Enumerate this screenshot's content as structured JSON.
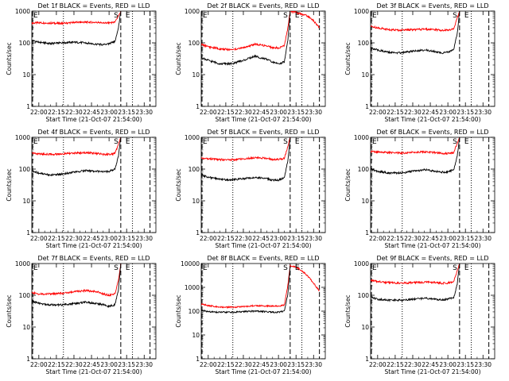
{
  "chart_data": [
    {
      "type": "line",
      "title": "Det 1f BLACK = Events, RED = LLD",
      "xlabel": "Start Time (21-Oct-07 21:54:00)",
      "ylabel": "Counts/sec",
      "x_tick_labels": [
        "22:00",
        "22:15",
        "22:30",
        "22:45",
        "23:00",
        "23:15",
        "23:30"
      ],
      "x_range_min": [
        -6,
        100
      ],
      "y_scale": "log",
      "ylim": [
        1,
        1000
      ],
      "y_tick_labels": [
        "1",
        "10",
        "100",
        "1000"
      ],
      "markers": [
        {
          "label": "E",
          "x": -6,
          "style": "dash"
        },
        {
          "label": "S",
          "x": 70,
          "style": "dash"
        },
        {
          "label": "E",
          "x": 80,
          "style": "dot"
        },
        {
          "label": "",
          "x": 95,
          "style": "dash"
        },
        {
          "label": "",
          "x": 21,
          "style": "dot"
        }
      ],
      "series": [
        {
          "color": "#ff0000",
          "x": [
            -6,
            0,
            10,
            20,
            30,
            40,
            50,
            55,
            60,
            65,
            68,
            70
          ],
          "values": [
            420,
            430,
            420,
            410,
            440,
            450,
            440,
            420,
            430,
            450,
            700,
            1000
          ]
        },
        {
          "color": "#000000",
          "x": [
            -6,
            0,
            10,
            20,
            30,
            40,
            50,
            55,
            60,
            65,
            68,
            70
          ],
          "values": [
            120,
            105,
            95,
            100,
            105,
            100,
            90,
            88,
            95,
            110,
            300,
            1000
          ]
        }
      ]
    },
    {
      "type": "line",
      "title": "Det 2f BLACK = Events, RED = LLD",
      "xlabel": "Start Time (21-Oct-07 21:54:00)",
      "ylabel": "Counts/sec",
      "x_tick_labels": [
        "22:00",
        "22:15",
        "22:30",
        "22:45",
        "23:00",
        "23:15",
        "23:30"
      ],
      "x_range_min": [
        -6,
        100
      ],
      "y_scale": "log",
      "ylim": [
        1,
        1000
      ],
      "y_tick_labels": [
        "1",
        "10",
        "100",
        "1000"
      ],
      "markers": [
        {
          "label": "E",
          "x": -6,
          "style": "dash"
        },
        {
          "label": "S",
          "x": 70,
          "style": "dash"
        },
        {
          "label": "E",
          "x": 80,
          "style": "dot"
        },
        {
          "label": "",
          "x": 95,
          "style": "dash"
        },
        {
          "label": "",
          "x": 21,
          "style": "dot"
        }
      ],
      "series": [
        {
          "color": "#ff0000",
          "x": [
            -6,
            0,
            10,
            20,
            30,
            40,
            50,
            55,
            60,
            65,
            68,
            70,
            75,
            80,
            85,
            90,
            95
          ],
          "values": [
            90,
            75,
            65,
            60,
            70,
            90,
            80,
            70,
            70,
            80,
            300,
            1000,
            900,
            800,
            700,
            500,
            300
          ]
        },
        {
          "color": "#000000",
          "x": [
            -6,
            0,
            10,
            20,
            30,
            40,
            50,
            55,
            60,
            65,
            68,
            70
          ],
          "values": [
            35,
            28,
            22,
            22,
            28,
            38,
            30,
            25,
            22,
            25,
            120,
            1000
          ]
        }
      ]
    },
    {
      "type": "line",
      "title": "Det 3f BLACK = Events, RED = LLD",
      "xlabel": "Start Time (21-Oct-07 21:54:00)",
      "ylabel": "Counts/sec",
      "x_tick_labels": [
        "22:00",
        "22:15",
        "22:30",
        "22:45",
        "23:00",
        "23:15",
        "23:30"
      ],
      "x_range_min": [
        -6,
        100
      ],
      "y_scale": "log",
      "ylim": [
        1,
        1000
      ],
      "y_tick_labels": [
        "1",
        "10",
        "100",
        "1000"
      ],
      "markers": [
        {
          "label": "E",
          "x": -6,
          "style": "dash"
        },
        {
          "label": "S",
          "x": 70,
          "style": "dash"
        },
        {
          "label": "E",
          "x": 80,
          "style": "dot"
        },
        {
          "label": "",
          "x": 95,
          "style": "dash"
        },
        {
          "label": "",
          "x": 21,
          "style": "dot"
        }
      ],
      "series": [
        {
          "color": "#ff0000",
          "x": [
            -6,
            0,
            10,
            20,
            30,
            40,
            50,
            55,
            60,
            65,
            68,
            70
          ],
          "values": [
            330,
            300,
            260,
            250,
            260,
            270,
            260,
            250,
            250,
            280,
            600,
            1000
          ]
        },
        {
          "color": "#000000",
          "x": [
            -6,
            0,
            10,
            20,
            30,
            40,
            50,
            55,
            60,
            65,
            68,
            70
          ],
          "values": [
            70,
            60,
            50,
            48,
            55,
            60,
            52,
            48,
            50,
            60,
            200,
            1000
          ]
        }
      ]
    },
    {
      "type": "line",
      "title": "Det 4f BLACK = Events, RED = LLD",
      "xlabel": "Start Time (21-Oct-07 21:54:00)",
      "ylabel": "Counts/sec",
      "x_tick_labels": [
        "22:00",
        "22:15",
        "22:30",
        "22:45",
        "23:00",
        "23:15",
        "23:30"
      ],
      "x_range_min": [
        -6,
        100
      ],
      "y_scale": "log",
      "ylim": [
        1,
        1000
      ],
      "y_tick_labels": [
        "1",
        "10",
        "100",
        "1000"
      ],
      "markers": [
        {
          "label": "E",
          "x": -6,
          "style": "dash"
        },
        {
          "label": "S",
          "x": 70,
          "style": "dash"
        },
        {
          "label": "E",
          "x": 80,
          "style": "dot"
        },
        {
          "label": "",
          "x": 95,
          "style": "dash"
        },
        {
          "label": "",
          "x": 21,
          "style": "dot"
        }
      ],
      "series": [
        {
          "color": "#ff0000",
          "x": [
            -6,
            0,
            10,
            20,
            30,
            40,
            50,
            55,
            60,
            65,
            68,
            70
          ],
          "values": [
            320,
            300,
            290,
            300,
            320,
            330,
            310,
            290,
            290,
            310,
            600,
            1000
          ]
        },
        {
          "color": "#000000",
          "x": [
            -6,
            0,
            10,
            20,
            30,
            40,
            50,
            55,
            60,
            65,
            68,
            70
          ],
          "values": [
            90,
            75,
            65,
            70,
            80,
            90,
            85,
            80,
            85,
            100,
            250,
            1000
          ]
        }
      ]
    },
    {
      "type": "line",
      "title": "Det 5f BLACK = Events, RED = LLD",
      "xlabel": "Start Time (21-Oct-07 21:54:00)",
      "ylabel": "Counts/sec",
      "x_tick_labels": [
        "22:00",
        "22:15",
        "22:30",
        "22:45",
        "23:00",
        "23:15",
        "23:30"
      ],
      "x_range_min": [
        -6,
        100
      ],
      "y_scale": "log",
      "ylim": [
        1,
        1000
      ],
      "y_tick_labels": [
        "1",
        "10",
        "100",
        "1000"
      ],
      "markers": [
        {
          "label": "E",
          "x": -6,
          "style": "dash"
        },
        {
          "label": "S",
          "x": 70,
          "style": "dash"
        },
        {
          "label": "E",
          "x": 80,
          "style": "dot"
        },
        {
          "label": "",
          "x": 95,
          "style": "dash"
        },
        {
          "label": "",
          "x": 21,
          "style": "dot"
        }
      ],
      "series": [
        {
          "color": "#ff0000",
          "x": [
            -6,
            0,
            10,
            20,
            30,
            40,
            50,
            55,
            60,
            65,
            68,
            70
          ],
          "values": [
            220,
            210,
            200,
            195,
            210,
            230,
            220,
            200,
            200,
            220,
            500,
            1000
          ]
        },
        {
          "color": "#000000",
          "x": [
            -6,
            0,
            10,
            20,
            30,
            40,
            50,
            55,
            60,
            65,
            68,
            70
          ],
          "values": [
            65,
            55,
            48,
            45,
            50,
            55,
            50,
            45,
            45,
            55,
            180,
            1000
          ]
        }
      ]
    },
    {
      "type": "line",
      "title": "Det 6f BLACK = Events, RED = LLD",
      "xlabel": "Start Time (21-Oct-07 21:54:00)",
      "ylabel": "Counts/sec",
      "x_tick_labels": [
        "22:00",
        "22:15",
        "22:30",
        "22:45",
        "23:00",
        "23:15",
        "23:30"
      ],
      "x_range_min": [
        -6,
        100
      ],
      "y_scale": "log",
      "ylim": [
        1,
        1000
      ],
      "y_tick_labels": [
        "1",
        "10",
        "100",
        "1000"
      ],
      "markers": [
        {
          "label": "E",
          "x": -6,
          "style": "dash"
        },
        {
          "label": "S",
          "x": 70,
          "style": "dash"
        },
        {
          "label": "E",
          "x": 80,
          "style": "dot"
        },
        {
          "label": "",
          "x": 95,
          "style": "dash"
        },
        {
          "label": "",
          "x": 21,
          "style": "dot"
        }
      ],
      "series": [
        {
          "color": "#ff0000",
          "x": [
            -6,
            0,
            10,
            20,
            30,
            40,
            50,
            55,
            60,
            65,
            68,
            70
          ],
          "values": [
            360,
            340,
            330,
            320,
            340,
            350,
            330,
            310,
            310,
            330,
            650,
            1000
          ]
        },
        {
          "color": "#000000",
          "x": [
            -6,
            0,
            10,
            20,
            30,
            40,
            50,
            55,
            60,
            65,
            68,
            70
          ],
          "values": [
            100,
            85,
            75,
            75,
            85,
            95,
            85,
            80,
            80,
            95,
            260,
            1000
          ]
        }
      ]
    },
    {
      "type": "line",
      "title": "Det 7f BLACK = Events, RED = LLD",
      "xlabel": "Start Time (21-Oct-07 21:54:00)",
      "ylabel": "Counts/sec",
      "x_tick_labels": [
        "22:00",
        "22:15",
        "22:30",
        "22:45",
        "23:00",
        "23:15",
        "23:30"
      ],
      "x_range_min": [
        -6,
        100
      ],
      "y_scale": "log",
      "ylim": [
        1,
        1000
      ],
      "y_tick_labels": [
        "1",
        "10",
        "100",
        "1000"
      ],
      "markers": [
        {
          "label": "E",
          "x": -6,
          "style": "dash"
        },
        {
          "label": "S",
          "x": 70,
          "style": "dash"
        },
        {
          "label": "E",
          "x": 80,
          "style": "dot"
        },
        {
          "label": "",
          "x": 95,
          "style": "dash"
        },
        {
          "label": "",
          "x": 21,
          "style": "dot"
        }
      ],
      "series": [
        {
          "color": "#ff0000",
          "x": [
            -6,
            0,
            10,
            20,
            30,
            40,
            50,
            55,
            60,
            65,
            68,
            70
          ],
          "values": [
            120,
            110,
            110,
            115,
            130,
            140,
            130,
            110,
            100,
            110,
            300,
            1000
          ]
        },
        {
          "color": "#000000",
          "x": [
            -6,
            0,
            10,
            20,
            30,
            40,
            50,
            55,
            60,
            65,
            68,
            70
          ],
          "values": [
            65,
            55,
            50,
            50,
            55,
            60,
            55,
            50,
            45,
            50,
            150,
            1000
          ]
        }
      ]
    },
    {
      "type": "line",
      "title": "Det 8f BLACK = Events, RED = LLD",
      "xlabel": "Start Time (21-Oct-07 21:54:00)",
      "ylabel": "Counts/sec",
      "x_tick_labels": [
        "22:00",
        "22:15",
        "22:30",
        "22:45",
        "23:00",
        "23:15",
        "23:30"
      ],
      "x_range_min": [
        -6,
        100
      ],
      "y_scale": "log",
      "ylim": [
        1,
        10000
      ],
      "y_tick_labels": [
        "1",
        "10",
        "100",
        "1000",
        "10000"
      ],
      "markers": [
        {
          "label": "E",
          "x": -6,
          "style": "dash"
        },
        {
          "label": "S",
          "x": 70,
          "style": "dash"
        },
        {
          "label": "E",
          "x": 80,
          "style": "dot"
        },
        {
          "label": "",
          "x": 95,
          "style": "dash"
        },
        {
          "label": "",
          "x": 21,
          "style": "dot"
        }
      ],
      "series": [
        {
          "color": "#ff0000",
          "x": [
            -6,
            0,
            10,
            20,
            30,
            40,
            50,
            55,
            60,
            65,
            68,
            70,
            75,
            80,
            85,
            90,
            95
          ],
          "values": [
            200,
            170,
            150,
            145,
            155,
            170,
            165,
            160,
            160,
            180,
            1200,
            8000,
            7000,
            5000,
            3000,
            1500,
            700
          ]
        },
        {
          "color": "#000000",
          "x": [
            -6,
            0,
            10,
            20,
            30,
            40,
            50,
            55,
            60,
            65,
            68,
            70
          ],
          "values": [
            110,
            95,
            90,
            90,
            95,
            100,
            95,
            90,
            90,
            100,
            500,
            8000
          ]
        }
      ]
    },
    {
      "type": "line",
      "title": "Det 9f BLACK = Events, RED = LLD",
      "xlabel": "Start Time (21-Oct-07 21:54:00)",
      "ylabel": "Counts/sec",
      "x_tick_labels": [
        "22:00",
        "22:15",
        "22:30",
        "22:45",
        "23:00",
        "23:15",
        "23:30"
      ],
      "x_range_min": [
        -6,
        100
      ],
      "y_scale": "log",
      "ylim": [
        1,
        1000
      ],
      "y_tick_labels": [
        "1",
        "10",
        "100",
        "1000"
      ],
      "markers": [
        {
          "label": "E",
          "x": -6,
          "style": "dash"
        },
        {
          "label": "S",
          "x": 70,
          "style": "dash"
        },
        {
          "label": "E",
          "x": 80,
          "style": "dot"
        },
        {
          "label": "",
          "x": 95,
          "style": "dash"
        },
        {
          "label": "",
          "x": 21,
          "style": "dot"
        }
      ],
      "series": [
        {
          "color": "#ff0000",
          "x": [
            -6,
            0,
            10,
            20,
            30,
            40,
            50,
            55,
            60,
            65,
            68,
            70
          ],
          "values": [
            300,
            270,
            250,
            240,
            250,
            260,
            250,
            240,
            245,
            270,
            600,
            1000
          ]
        },
        {
          "color": "#000000",
          "x": [
            -6,
            0,
            10,
            20,
            30,
            40,
            50,
            55,
            60,
            65,
            68,
            70
          ],
          "values": [
            90,
            75,
            70,
            70,
            75,
            80,
            75,
            72,
            75,
            85,
            220,
            1000
          ]
        }
      ]
    }
  ]
}
